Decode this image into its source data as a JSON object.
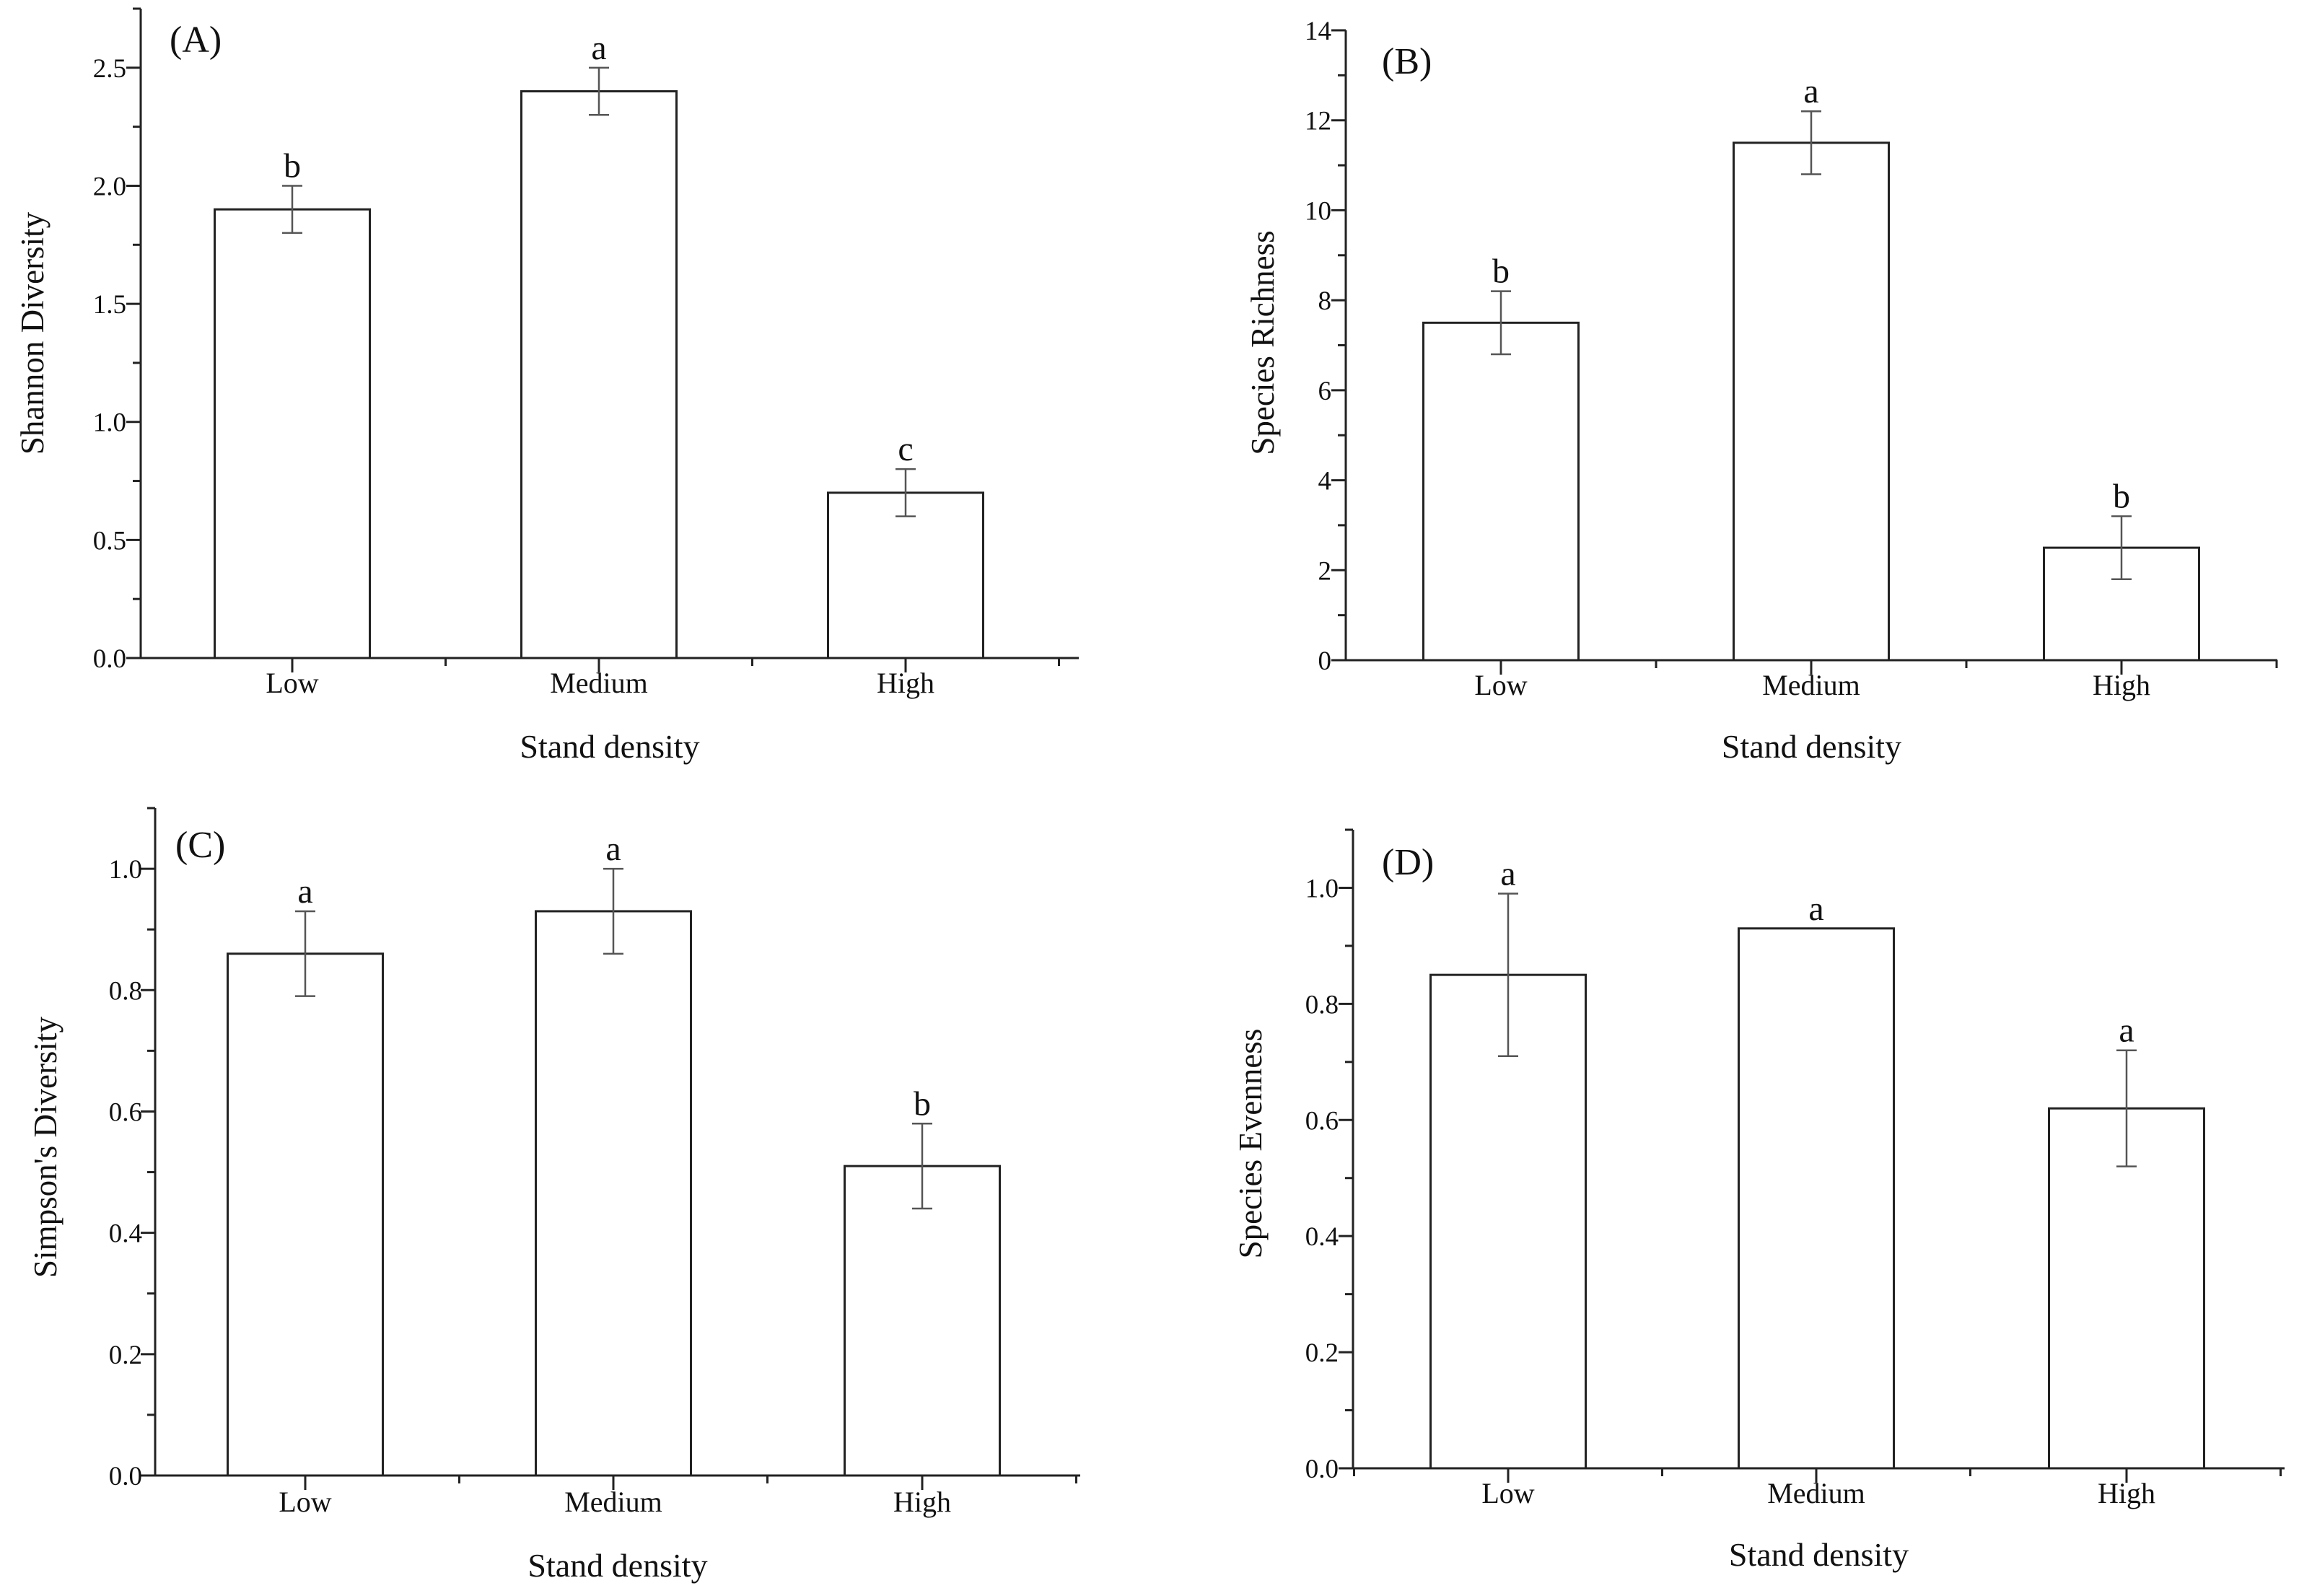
{
  "figure": {
    "description": "Four-panel bar chart of understory diversity indices by stand density"
  },
  "chart_data": [
    {
      "type": "bar",
      "panel": "(A)",
      "categories": [
        "Low",
        "Medium",
        "High"
      ],
      "values": [
        1.9,
        2.4,
        0.7
      ],
      "errors": [
        0.1,
        0.1,
        0.1
      ],
      "significance": [
        "b",
        "a",
        "c"
      ],
      "xlabel": "Stand density",
      "ylabel": "Shannon Diversity",
      "ylim": [
        0,
        2.75
      ],
      "yticks": [
        0,
        0.5,
        1,
        1.5,
        2,
        2.5
      ],
      "ytick_labels": [
        "0.0",
        "0.5",
        "1.0",
        "1.5",
        "2.0",
        "2.5"
      ],
      "grid": false
    },
    {
      "type": "bar",
      "panel": "(B)",
      "categories": [
        "Low",
        "Medium",
        "High"
      ],
      "values": [
        7.5,
        11.5,
        2.5
      ],
      "errors": [
        0.7,
        0.7,
        0.7
      ],
      "significance": [
        "b",
        "a",
        "b"
      ],
      "xlabel": "Stand density",
      "ylabel": "Species Richness",
      "ylim": [
        0,
        14
      ],
      "yticks": [
        0,
        2,
        4,
        6,
        8,
        10,
        12,
        14
      ],
      "ytick_labels": [
        "0",
        "2",
        "4",
        "6",
        "8",
        "10",
        "12",
        "14"
      ],
      "grid": false
    },
    {
      "type": "bar",
      "panel": "(C)",
      "categories": [
        "Low",
        "Medium",
        "High"
      ],
      "values": [
        0.86,
        0.93,
        0.51
      ],
      "errors": [
        0.07,
        0.07,
        0.07
      ],
      "significance": [
        "a",
        "a",
        "b"
      ],
      "xlabel": "Stand density",
      "ylabel": "Simpson's Diversity",
      "ylim": [
        0,
        1.1
      ],
      "yticks": [
        0,
        0.2,
        0.4,
        0.6,
        0.8,
        1.0
      ],
      "ytick_labels": [
        "0.0",
        "0.2",
        "0.4",
        "0.6",
        "0.8",
        "1.0"
      ],
      "grid": false
    },
    {
      "type": "bar",
      "panel": "(D)",
      "categories": [
        "Low",
        "Medium",
        "High"
      ],
      "values": [
        0.85,
        0.93,
        0.62
      ],
      "errors": [
        0.14,
        0,
        0.1
      ],
      "significance": [
        "a",
        "a",
        "a"
      ],
      "xlabel": "Stand density",
      "ylabel": "Species Evenness",
      "ylim": [
        0,
        1.1
      ],
      "yticks": [
        0,
        0.2,
        0.4,
        0.6,
        0.8,
        1.0
      ],
      "ytick_labels": [
        "0.0",
        "0.2",
        "0.4",
        "0.6",
        "0.8",
        "1.0"
      ],
      "grid": false
    }
  ]
}
